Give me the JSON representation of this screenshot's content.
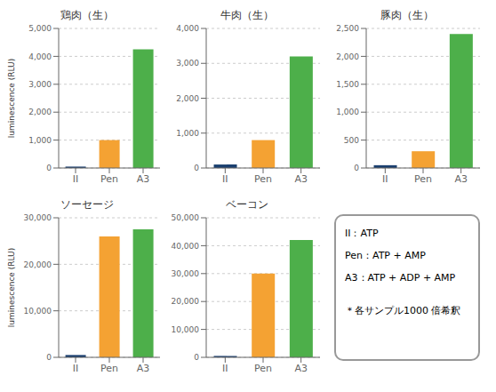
{
  "chart_data": [
    {
      "type": "bar",
      "title": "鶏肉（生）",
      "categories": [
        "II",
        "Pen",
        "A3"
      ],
      "values": [
        50,
        1000,
        4250
      ],
      "colors": [
        "#1a3f6f",
        "#f4a233",
        "#4daf4a"
      ],
      "ylabel": "luminescence (RLU)",
      "ylim": [
        0,
        5000
      ],
      "yticks": [
        0,
        {
          "value": 1000,
          "label": "1,000"
        },
        {
          "value": 2000,
          "label": "2,000"
        },
        {
          "value": 3000,
          "label": "3,000"
        },
        {
          "value": 4000,
          "label": "4,000"
        },
        {
          "value": 5000,
          "label": "5,000"
        }
      ],
      "grid": true
    },
    {
      "type": "bar",
      "title": "牛肉（生）",
      "categories": [
        "II",
        "Pen",
        "A3"
      ],
      "values": [
        100,
        800,
        3200
      ],
      "colors": [
        "#1a3f6f",
        "#f4a233",
        "#4daf4a"
      ],
      "ylim": [
        0,
        4000
      ],
      "yticks": [
        0,
        {
          "value": 1000,
          "label": "1,000"
        },
        {
          "value": 2000,
          "label": "2,000"
        },
        {
          "value": 3000,
          "label": "3,000"
        },
        {
          "value": 4000,
          "label": "4,000"
        }
      ],
      "grid": true
    },
    {
      "type": "bar",
      "title": "豚肉（生）",
      "categories": [
        "II",
        "Pen",
        "A3"
      ],
      "values": [
        50,
        300,
        2400
      ],
      "colors": [
        "#1a3f6f",
        "#f4a233",
        "#4daf4a"
      ],
      "ylim": [
        0,
        2500
      ],
      "yticks": [
        0,
        500,
        {
          "value": 1000,
          "label": "1,000"
        },
        {
          "value": 1500,
          "label": "1,500"
        },
        {
          "value": 2000,
          "label": "2,000"
        },
        {
          "value": 2500,
          "label": "2,500"
        }
      ],
      "grid": true
    },
    {
      "type": "bar",
      "title": "ソーセージ",
      "categories": [
        "II",
        "Pen",
        "A3"
      ],
      "values": [
        500,
        26000,
        27500
      ],
      "colors": [
        "#1a3f6f",
        "#f4a233",
        "#4daf4a"
      ],
      "ylabel": "luminescence (RLU)",
      "ylim": [
        0,
        30000
      ],
      "yticks": [
        0,
        {
          "value": 10000,
          "label": "10,000"
        },
        {
          "value": 20000,
          "label": "20,000"
        },
        {
          "value": 30000,
          "label": "30,000"
        }
      ],
      "grid": true
    },
    {
      "type": "bar",
      "title": "ベーコン",
      "categories": [
        "II",
        "Pen",
        "A3"
      ],
      "values": [
        500,
        30000,
        42000
      ],
      "colors": [
        "#1a3f6f",
        "#f4a233",
        "#4daf4a"
      ],
      "ylim": [
        0,
        50000
      ],
      "yticks": [
        0,
        {
          "value": 10000,
          "label": "10,000"
        },
        {
          "value": 20000,
          "label": "20,000"
        },
        {
          "value": 30000,
          "label": "30,000"
        },
        {
          "value": 40000,
          "label": "40,000"
        },
        {
          "value": 50000,
          "label": "50,000"
        }
      ],
      "grid": true,
      "annotations": [
        "II：ATP",
        "Pen：ATP + AMP",
        "A3：ATP + ADP + AMP",
        "＊各サンプル1000 倍希釈"
      ]
    }
  ]
}
